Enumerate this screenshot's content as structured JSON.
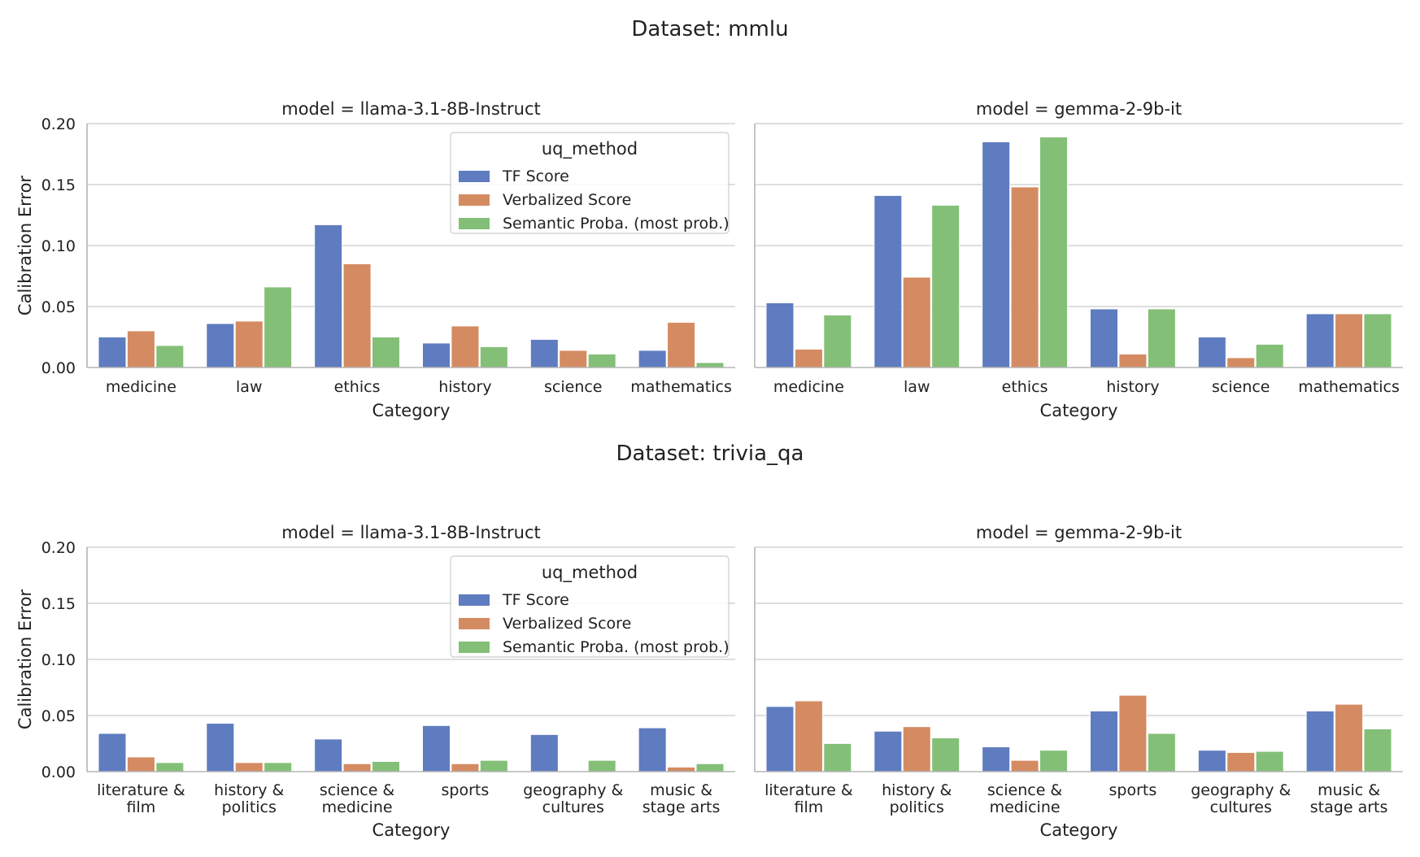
{
  "colors": {
    "TF Score": "#5f7cc0",
    "Verbalized Score": "#d48b62",
    "Semantic Proba. (most prob.)": "#84bf78"
  },
  "legend": {
    "title": "uq_method",
    "entries": [
      "TF Score",
      "Verbalized Score",
      "Semantic Proba. (most prob.)"
    ]
  },
  "chart_data": [
    {
      "section_title": "Dataset: mmlu",
      "panels": [
        {
          "type": "bar",
          "title": "model = llama-3.1-8B-Instruct",
          "xlabel": "Category",
          "ylabel": "Calibration Error",
          "ylim": [
            0,
            0.2
          ],
          "yticks": [
            "0.00",
            "0.05",
            "0.10",
            "0.15",
            "0.20"
          ],
          "show_legend": true,
          "legend_position": "upper-right",
          "categories": [
            "medicine",
            "law",
            "ethics",
            "history",
            "science",
            "mathematics"
          ],
          "series": [
            {
              "name": "TF Score",
              "values": [
                0.025,
                0.036,
                0.117,
                0.02,
                0.023,
                0.014
              ]
            },
            {
              "name": "Verbalized Score",
              "values": [
                0.03,
                0.038,
                0.085,
                0.034,
                0.014,
                0.037
              ]
            },
            {
              "name": "Semantic Proba. (most prob.)",
              "values": [
                0.018,
                0.066,
                0.025,
                0.017,
                0.011,
                0.004
              ]
            }
          ]
        },
        {
          "type": "bar",
          "title": "model = gemma-2-9b-it",
          "xlabel": "Category",
          "ylabel": "",
          "ylim": [
            0,
            0.2
          ],
          "yticks": [],
          "show_legend": false,
          "legend_position": "",
          "categories": [
            "medicine",
            "law",
            "ethics",
            "history",
            "science",
            "mathematics"
          ],
          "series": [
            {
              "name": "TF Score",
              "values": [
                0.053,
                0.141,
                0.185,
                0.048,
                0.025,
                0.044
              ]
            },
            {
              "name": "Verbalized Score",
              "values": [
                0.015,
                0.074,
                0.148,
                0.011,
                0.008,
                0.044
              ]
            },
            {
              "name": "Semantic Proba. (most prob.)",
              "values": [
                0.043,
                0.133,
                0.189,
                0.048,
                0.019,
                0.044
              ]
            }
          ]
        }
      ]
    },
    {
      "section_title": "Dataset: trivia_qa",
      "panels": [
        {
          "type": "bar",
          "title": "model = llama-3.1-8B-Instruct",
          "xlabel": "Category",
          "ylabel": "Calibration Error",
          "ylim": [
            0,
            0.2
          ],
          "yticks": [
            "0.00",
            "0.05",
            "0.10",
            "0.15",
            "0.20"
          ],
          "show_legend": true,
          "legend_position": "upper-right",
          "categories": [
            [
              "literature &",
              "film"
            ],
            [
              "history &",
              "politics"
            ],
            [
              "science &",
              "medicine"
            ],
            [
              "sports"
            ],
            [
              "geography &",
              "cultures"
            ],
            [
              "music &",
              "stage arts"
            ]
          ],
          "series": [
            {
              "name": "TF Score",
              "values": [
                0.034,
                0.043,
                0.029,
                0.041,
                0.033,
                0.039
              ]
            },
            {
              "name": "Verbalized Score",
              "values": [
                0.013,
                0.008,
                0.007,
                0.007,
                0.0,
                0.004
              ]
            },
            {
              "name": "Semantic Proba. (most prob.)",
              "values": [
                0.008,
                0.008,
                0.009,
                0.01,
                0.01,
                0.007
              ]
            }
          ]
        },
        {
          "type": "bar",
          "title": "model = gemma-2-9b-it",
          "xlabel": "Category",
          "ylabel": "",
          "ylim": [
            0,
            0.2
          ],
          "yticks": [],
          "show_legend": false,
          "legend_position": "",
          "categories": [
            [
              "literature &",
              "film"
            ],
            [
              "history &",
              "politics"
            ],
            [
              "science &",
              "medicine"
            ],
            [
              "sports"
            ],
            [
              "geography &",
              "cultures"
            ],
            [
              "music &",
              "stage arts"
            ]
          ],
          "series": [
            {
              "name": "TF Score",
              "values": [
                0.058,
                0.036,
                0.022,
                0.054,
                0.019,
                0.054
              ]
            },
            {
              "name": "Verbalized Score",
              "values": [
                0.063,
                0.04,
                0.01,
                0.068,
                0.017,
                0.06
              ]
            },
            {
              "name": "Semantic Proba. (most prob.)",
              "values": [
                0.025,
                0.03,
                0.019,
                0.034,
                0.018,
                0.038
              ]
            }
          ]
        }
      ]
    }
  ]
}
